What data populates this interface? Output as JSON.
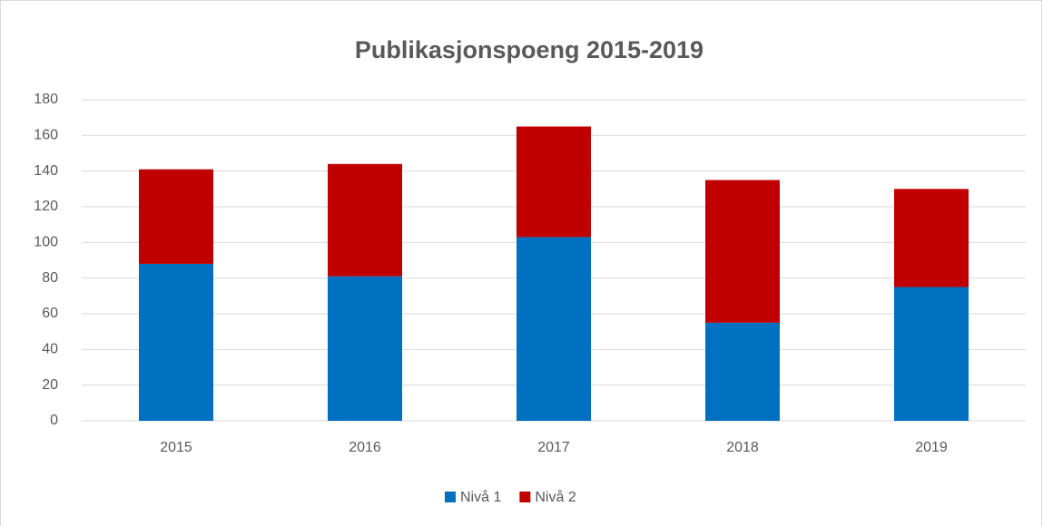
{
  "chart_data": {
    "type": "bar",
    "stacked": true,
    "title": "Publikasjonspoeng 2015-2019",
    "categories": [
      "2015",
      "2016",
      "2017",
      "2018",
      "2019"
    ],
    "series": [
      {
        "name": "Nivå 1",
        "color": "#0070c0",
        "values": [
          88,
          81,
          103,
          55,
          75
        ]
      },
      {
        "name": "Nivå 2",
        "color": "#c00000",
        "values": [
          53,
          63,
          62,
          80,
          55
        ]
      }
    ],
    "ylim": [
      0,
      180
    ],
    "yticks": [
      0,
      20,
      40,
      60,
      80,
      100,
      120,
      140,
      160,
      180
    ],
    "grid": true,
    "legend": "bottom"
  }
}
